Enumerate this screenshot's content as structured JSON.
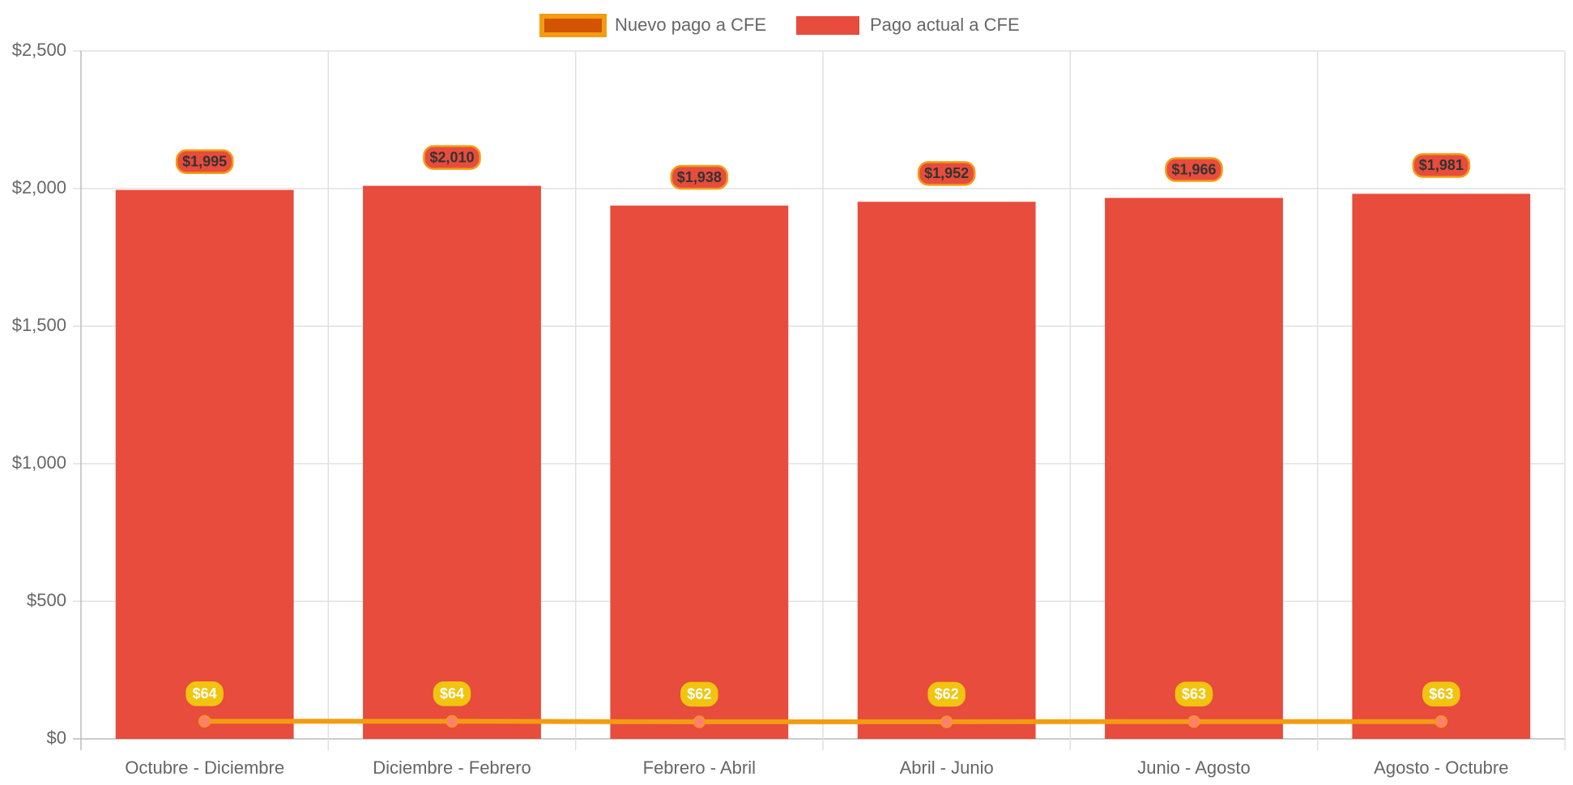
{
  "chart_data": {
    "type": "bar",
    "categories": [
      "Octubre - Diciembre",
      "Diciembre - Febrero",
      "Febrero - Abril",
      "Abril - Junio",
      "Junio - Agosto",
      "Agosto - Octubre"
    ],
    "series": [
      {
        "name": "Nuevo pago a CFE",
        "type": "line",
        "color": "#f39c12",
        "values": [
          64,
          64,
          62,
          62,
          63,
          63
        ],
        "value_labels": [
          "$64",
          "$64",
          "$62",
          "$62",
          "$63",
          "$63"
        ]
      },
      {
        "name": "Pago actual a CFE",
        "type": "bar",
        "color": "#e74c3c",
        "values": [
          1995,
          2010,
          1938,
          1952,
          1966,
          1981
        ],
        "value_labels": [
          "$1,995",
          "$2,010",
          "$1,938",
          "$1,952",
          "$1,966",
          "$1,981"
        ]
      }
    ],
    "ylim": [
      0,
      2500
    ],
    "yticks": [
      {
        "value": 0,
        "label": "$0"
      },
      {
        "value": 500,
        "label": "$500"
      },
      {
        "value": 1000,
        "label": "$1,000"
      },
      {
        "value": 1500,
        "label": "$1,500"
      },
      {
        "value": 2000,
        "label": "$2,000"
      },
      {
        "value": 2500,
        "label": "$2,500"
      }
    ],
    "grid": true,
    "legend": "top"
  }
}
